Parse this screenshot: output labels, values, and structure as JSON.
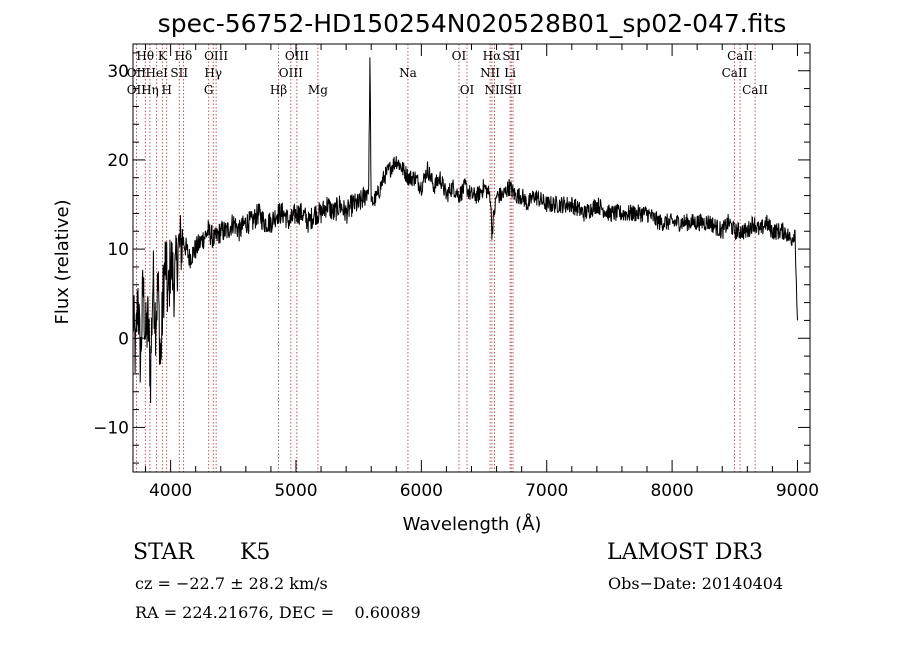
{
  "chart_data": {
    "type": "line",
    "title": "spec-56752-HD150254N020528B01_sp02-047.fits",
    "xlabel": "Wavelength (Å)",
    "ylabel": "Flux (relative)",
    "xlim": [
      3700,
      9100
    ],
    "ylim": [
      -15,
      33
    ],
    "xticks": [
      4000,
      5000,
      6000,
      7000,
      8000,
      9000
    ],
    "yticks": [
      -10,
      0,
      10,
      20,
      30
    ],
    "series": [
      {
        "name": "flux",
        "x": [
          3700,
          3720,
          3740,
          3760,
          3780,
          3800,
          3820,
          3840,
          3860,
          3880,
          3900,
          3920,
          3940,
          3960,
          3980,
          4000,
          4030,
          4060,
          4100,
          4150,
          4200,
          4250,
          4300,
          4350,
          4400,
          4450,
          4500,
          4550,
          4600,
          4650,
          4700,
          4750,
          4800,
          4850,
          4900,
          4950,
          5000,
          5050,
          5100,
          5150,
          5200,
          5250,
          5300,
          5350,
          5400,
          5450,
          5500,
          5550,
          5580,
          5590,
          5600,
          5650,
          5700,
          5750,
          5800,
          5850,
          5900,
          5950,
          6000,
          6050,
          6100,
          6150,
          6200,
          6250,
          6300,
          6350,
          6400,
          6450,
          6500,
          6550,
          6563,
          6600,
          6650,
          6700,
          6750,
          6800,
          6850,
          6900,
          7000,
          7100,
          7200,
          7300,
          7400,
          7500,
          7600,
          7700,
          7800,
          7900,
          8000,
          8100,
          8200,
          8300,
          8400,
          8450,
          8500,
          8550,
          8600,
          8650,
          8700,
          8750,
          8800,
          8850,
          8900,
          8950,
          8980,
          9000
        ],
        "values": [
          3,
          -2,
          5,
          -3,
          6,
          0,
          2,
          -4,
          7,
          2,
          6,
          -3,
          5,
          9,
          4,
          9,
          6,
          10,
          11,
          9,
          10,
          11,
          12,
          11,
          12,
          12,
          13,
          12,
          13,
          13,
          14,
          13,
          13,
          14,
          14,
          13,
          14,
          14,
          13,
          14,
          14,
          15,
          14,
          15,
          14,
          15,
          15,
          16,
          17,
          31,
          15,
          16,
          18,
          19,
          20,
          19,
          18,
          18,
          17,
          19,
          17,
          18,
          16,
          17,
          16,
          17,
          16,
          16,
          17,
          16,
          12,
          16,
          16,
          17,
          16,
          16,
          15,
          16,
          15,
          15,
          15,
          14,
          15,
          14,
          14,
          14,
          14,
          13,
          13,
          13,
          13,
          13,
          12,
          13,
          12,
          12,
          12,
          13,
          12,
          13,
          12,
          12,
          12,
          11,
          12,
          2
        ]
      }
    ],
    "line_labels": [
      {
        "text": "Hθ",
        "x": 3798,
        "row": 0
      },
      {
        "text": "OII",
        "x": 3727,
        "row": 1
      },
      {
        "text": "OII",
        "x": 3727,
        "row": 2
      },
      {
        "text": "Hη",
        "x": 3835,
        "row": 2
      },
      {
        "text": "K",
        "x": 3934,
        "row": 0
      },
      {
        "text": "HeI",
        "x": 3889,
        "row": 1
      },
      {
        "text": "H",
        "x": 3969,
        "row": 2
      },
      {
        "text": "Hδ",
        "x": 4102,
        "row": 0
      },
      {
        "text": "SII",
        "x": 4069,
        "row": 1
      },
      {
        "text": "OIII",
        "x": 4363,
        "row": 0
      },
      {
        "text": "Hγ",
        "x": 4340,
        "row": 1
      },
      {
        "text": "G",
        "x": 4304,
        "row": 2
      },
      {
        "text": "Hβ",
        "x": 4861,
        "row": 2
      },
      {
        "text": "OIII",
        "x": 5007,
        "row": 0
      },
      {
        "text": "OIII",
        "x": 4959,
        "row": 1
      },
      {
        "text": "Mg",
        "x": 5175,
        "row": 2
      },
      {
        "text": "Na",
        "x": 5893,
        "row": 1
      },
      {
        "text": "OI",
        "x": 6300,
        "row": 0
      },
      {
        "text": "OI",
        "x": 6364,
        "row": 2
      },
      {
        "text": "Hα",
        "x": 6563,
        "row": 0
      },
      {
        "text": "NII",
        "x": 6548,
        "row": 1
      },
      {
        "text": "NII",
        "x": 6583,
        "row": 2
      },
      {
        "text": "SII",
        "x": 6717,
        "row": 0
      },
      {
        "text": "Li",
        "x": 6708,
        "row": 1
      },
      {
        "text": "SII",
        "x": 6731,
        "row": 2
      },
      {
        "text": "CaII",
        "x": 8542,
        "row": 0
      },
      {
        "text": "CaII",
        "x": 8498,
        "row": 1
      },
      {
        "text": "CaII",
        "x": 8662,
        "row": 2
      }
    ],
    "line_markers": [
      3727,
      3798,
      3835,
      3889,
      3934,
      3969,
      4069,
      4102,
      4304,
      4340,
      4363,
      4861,
      4959,
      5007,
      5175,
      5893,
      6300,
      6364,
      6548,
      6563,
      6583,
      6708,
      6717,
      6731,
      8498,
      8542,
      8662
    ]
  },
  "info": {
    "object_type": "STAR",
    "subclass": "K5",
    "survey": "LAMOST DR3",
    "cz": "cz = −22.7 ± 28.2 km/s",
    "obs_date": "Obs−Date: 20140404",
    "coords": "RA = 224.21676, DEC =    0.60089"
  },
  "colors": {
    "line": "#000000",
    "marker": "#b03030",
    "background": "#ffffff"
  }
}
